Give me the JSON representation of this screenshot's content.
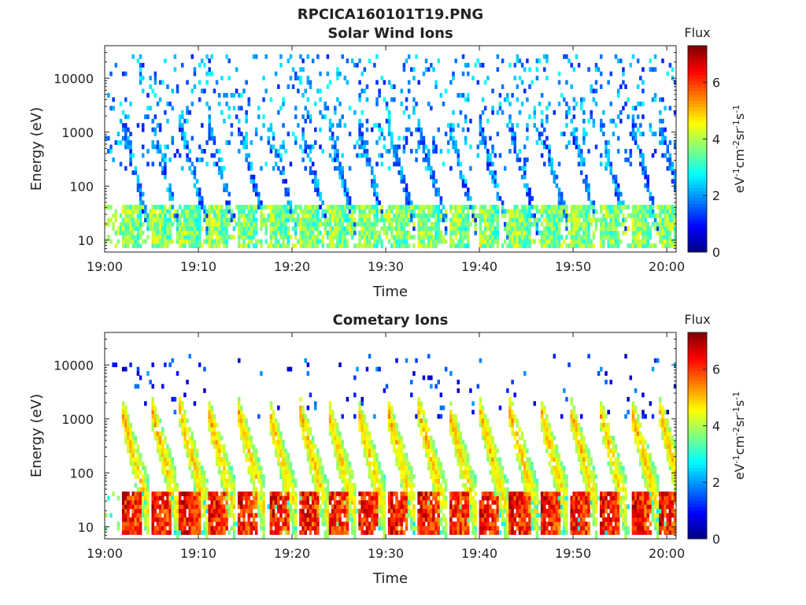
{
  "figure": {
    "title": "RPCICA160101T19.PNG"
  },
  "chart_data": [
    {
      "type": "heatmap",
      "title": "Solar Wind Ions",
      "xlabel": "Time",
      "ylabel": "Energy (eV)",
      "y_scale": "log",
      "xlim": [
        "19:00",
        "20:01"
      ],
      "ylim": [
        6,
        40000
      ],
      "x_ticks": [
        "19:00",
        "19:10",
        "19:20",
        "19:30",
        "19:40",
        "19:50",
        "20:00"
      ],
      "y_ticks": [
        "10",
        "100",
        "1000",
        "10000"
      ],
      "colorbar": {
        "title": "Flux",
        "label": "eV-1cm-2sr-1s-1",
        "label_parts": [
          {
            "text": "eV",
            "sup": false
          },
          {
            "text": "-1",
            "sup": true
          },
          {
            "text": "cm",
            "sup": false
          },
          {
            "text": "-2",
            "sup": true
          },
          {
            "text": "sr",
            "sup": false
          },
          {
            "text": "-1",
            "sup": true
          },
          {
            "text": "s",
            "sup": false
          },
          {
            "text": "-1",
            "sup": true
          }
        ],
        "range": [
          0,
          7.3
        ],
        "ticks": [
          "0",
          "2",
          "4",
          "6"
        ],
        "colormap": "jet"
      },
      "bursts_start_times": [
        "19:01.8",
        "19:05.0",
        "19:08.0",
        "19:11.0",
        "19:14.2",
        "19:17.5",
        "19:20.8",
        "19:23.8",
        "19:27.0",
        "19:30.2",
        "19:33.5",
        "19:36.7",
        "19:40.0",
        "19:43.2",
        "19:46.5",
        "19:49.7",
        "19:52.8",
        "19:56.2",
        "19:59.2"
      ],
      "description_of_values": {
        "low_energy_band_eV": [
          7,
          45
        ],
        "low_energy_flux": 4.0,
        "burst_peak_energy_eV": 1500,
        "burst_flux": 1.0,
        "scattered_background_energy_eV": [
          200,
          30000
        ],
        "scattered_background_flux": 2.0
      }
    },
    {
      "type": "heatmap",
      "title": "Cometary Ions",
      "xlabel": "Time",
      "ylabel": "Energy (eV)",
      "y_scale": "log",
      "xlim": [
        "19:00",
        "20:01"
      ],
      "ylim": [
        6,
        40000
      ],
      "x_ticks": [
        "19:00",
        "19:10",
        "19:20",
        "19:30",
        "19:40",
        "19:50",
        "20:00"
      ],
      "y_ticks": [
        "10",
        "100",
        "1000",
        "10000"
      ],
      "colorbar": {
        "title": "Flux",
        "label": "eV-1cm-2sr-1s-1",
        "label_parts": [
          {
            "text": "eV",
            "sup": false
          },
          {
            "text": "-1",
            "sup": true
          },
          {
            "text": "cm",
            "sup": false
          },
          {
            "text": "-2",
            "sup": true
          },
          {
            "text": "sr",
            "sup": false
          },
          {
            "text": "-1",
            "sup": true
          },
          {
            "text": "s",
            "sup": false
          },
          {
            "text": "-1",
            "sup": true
          }
        ],
        "range": [
          0,
          7.3
        ],
        "ticks": [
          "0",
          "2",
          "4",
          "6"
        ],
        "colormap": "jet"
      },
      "bursts_start_times": [
        "19:01.8",
        "19:05.0",
        "19:08.0",
        "19:11.0",
        "19:14.2",
        "19:17.5",
        "19:20.8",
        "19:23.8",
        "19:27.0",
        "19:30.2",
        "19:33.5",
        "19:36.7",
        "19:40.0",
        "19:43.2",
        "19:46.5",
        "19:49.7",
        "19:52.8",
        "19:56.2",
        "19:59.2"
      ],
      "description_of_values": {
        "low_energy_band_eV": [
          7,
          45
        ],
        "low_energy_flux": 6.5,
        "burst_peak_energy_eV": 1500,
        "burst_flux": 4.0,
        "scattered_background_energy_eV": [
          1000,
          15000
        ],
        "scattered_background_flux": 1.2
      }
    }
  ]
}
